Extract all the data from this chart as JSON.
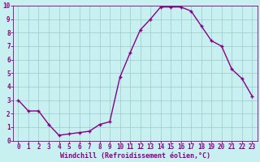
{
  "x": [
    0,
    1,
    2,
    3,
    4,
    5,
    6,
    7,
    8,
    9,
    10,
    11,
    12,
    13,
    14,
    15,
    16,
    17,
    18,
    19,
    20,
    21,
    22,
    23
  ],
  "y": [
    3,
    2.2,
    2.2,
    1.2,
    0.4,
    0.5,
    0.6,
    0.7,
    1.2,
    1.4,
    4.7,
    6.5,
    8.2,
    9.0,
    9.9,
    9.9,
    9.9,
    9.6,
    8.5,
    7.4,
    7.0,
    5.3,
    4.6,
    3.3
  ],
  "line_color": "#880088",
  "marker": "+",
  "marker_size": 3.5,
  "marker_linewidth": 1.0,
  "linewidth": 1.0,
  "bg_color": "#c8f0f0",
  "grid_color": "#99cccc",
  "xlabel": "Windchill (Refroidissement éolien,°C)",
  "xlabel_color": "#880088",
  "xlabel_fontsize": 6.0,
  "tick_color": "#880088",
  "tick_fontsize": 5.5,
  "xlim": [
    -0.5,
    23.5
  ],
  "ylim": [
    0,
    10
  ],
  "yticks": [
    0,
    1,
    2,
    3,
    4,
    5,
    6,
    7,
    8,
    9,
    10
  ],
  "xticks": [
    0,
    1,
    2,
    3,
    4,
    5,
    6,
    7,
    8,
    9,
    10,
    11,
    12,
    13,
    14,
    15,
    16,
    17,
    18,
    19,
    20,
    21,
    22,
    23
  ]
}
